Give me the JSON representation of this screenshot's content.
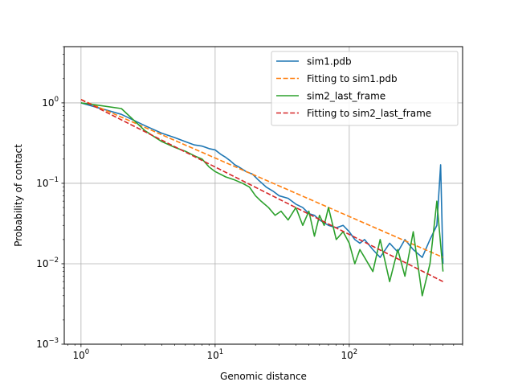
{
  "chart_data": {
    "type": "line",
    "title": "",
    "xlabel": "Genomic distance",
    "ylabel": "Probability of contact",
    "xscale": "log",
    "yscale": "log",
    "xlim": [
      0.75,
      700
    ],
    "ylim": [
      0.001,
      5
    ],
    "grid": true,
    "legend_position": "upper right",
    "x_ticks": [
      {
        "value": 1,
        "base": "10",
        "exp": "0"
      },
      {
        "value": 10,
        "base": "10",
        "exp": "1"
      },
      {
        "value": 100,
        "base": "10",
        "exp": "2"
      }
    ],
    "y_ticks": [
      {
        "value": 0.001,
        "base": "10",
        "exp": "−3"
      },
      {
        "value": 0.01,
        "base": "10",
        "exp": "−2"
      },
      {
        "value": 0.1,
        "base": "10",
        "exp": "−1"
      },
      {
        "value": 1,
        "base": "10",
        "exp": "0"
      }
    ],
    "series": [
      {
        "name": "sim1.pdb",
        "color": "#1f77b4",
        "style": "solid",
        "x": [
          1,
          2,
          3,
          4,
          5,
          6,
          7,
          8,
          9,
          10,
          11,
          12,
          13,
          14,
          15,
          17,
          19,
          21,
          24,
          27,
          30,
          35,
          40,
          45,
          50,
          55,
          60,
          70,
          80,
          90,
          100,
          110,
          120,
          130,
          150,
          170,
          200,
          230,
          260,
          300,
          350,
          400,
          450,
          480,
          500
        ],
        "y": [
          1.0,
          0.72,
          0.52,
          0.42,
          0.37,
          0.33,
          0.3,
          0.29,
          0.27,
          0.26,
          0.23,
          0.21,
          0.19,
          0.17,
          0.16,
          0.14,
          0.13,
          0.11,
          0.09,
          0.08,
          0.07,
          0.065,
          0.055,
          0.05,
          0.042,
          0.04,
          0.035,
          0.03,
          0.028,
          0.03,
          0.025,
          0.02,
          0.018,
          0.02,
          0.015,
          0.012,
          0.018,
          0.014,
          0.02,
          0.015,
          0.012,
          0.02,
          0.03,
          0.17,
          0.01
        ]
      },
      {
        "name": "Fitting to sim1.pdb",
        "color": "#ff7f0e",
        "style": "dashed",
        "x": [
          1,
          500
        ],
        "y": [
          1.1,
          0.012
        ]
      },
      {
        "name": "sim2_last_frame",
        "color": "#2ca02c",
        "style": "solid",
        "x": [
          1,
          2,
          3,
          4,
          5,
          6,
          7,
          8,
          9,
          10,
          12,
          14,
          16,
          18,
          20,
          22,
          25,
          28,
          31,
          35,
          40,
          45,
          50,
          55,
          60,
          65,
          70,
          80,
          90,
          100,
          110,
          120,
          130,
          150,
          170,
          200,
          230,
          260,
          300,
          350,
          400,
          450,
          500
        ],
        "y": [
          1.0,
          0.85,
          0.45,
          0.33,
          0.28,
          0.25,
          0.22,
          0.2,
          0.16,
          0.14,
          0.12,
          0.11,
          0.1,
          0.09,
          0.07,
          0.06,
          0.05,
          0.04,
          0.045,
          0.035,
          0.05,
          0.03,
          0.045,
          0.022,
          0.04,
          0.03,
          0.05,
          0.02,
          0.025,
          0.018,
          0.01,
          0.015,
          0.012,
          0.008,
          0.02,
          0.006,
          0.015,
          0.007,
          0.025,
          0.004,
          0.01,
          0.06,
          0.008
        ]
      },
      {
        "name": "Fitting to sim2_last_frame",
        "color": "#d62728",
        "style": "dashed",
        "x": [
          1,
          500
        ],
        "y": [
          1.1,
          0.006
        ]
      }
    ]
  }
}
